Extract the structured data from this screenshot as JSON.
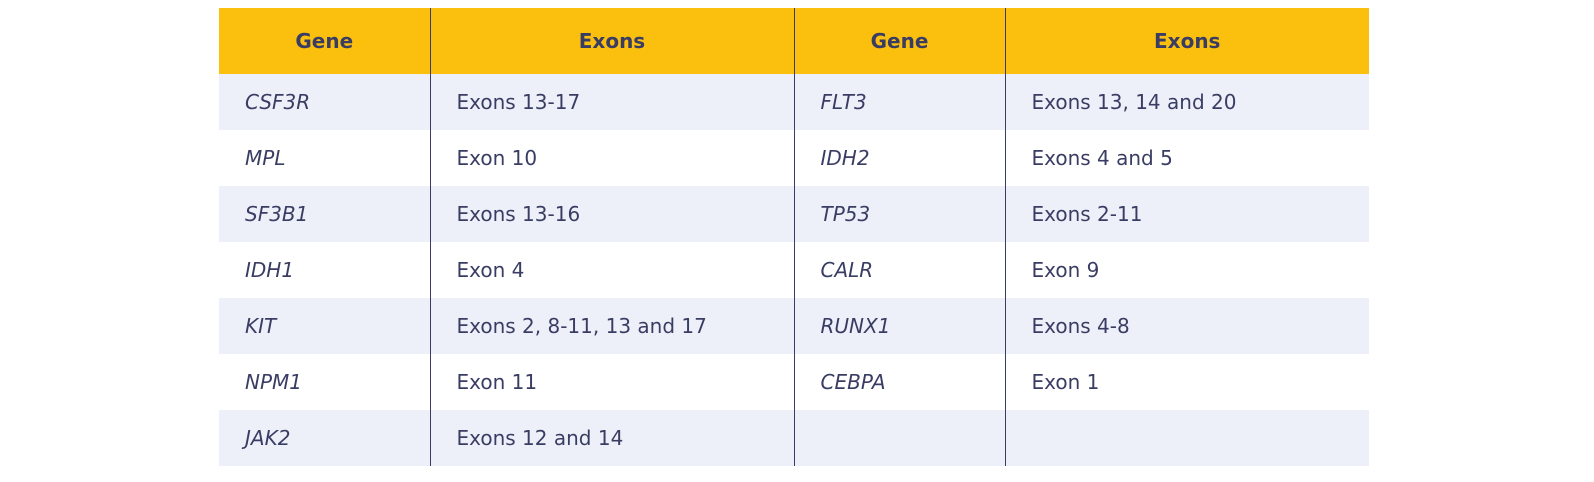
{
  "table": {
    "headers": [
      "Gene",
      "Exons",
      "Gene",
      "Exons"
    ],
    "rows": [
      {
        "gene1": "CSF3R",
        "exons1": "Exons 13-17",
        "gene2": "FLT3",
        "exons2": "Exons 13, 14 and 20"
      },
      {
        "gene1": "MPL",
        "exons1": "Exon 10",
        "gene2": "IDH2",
        "exons2": "Exons 4 and 5"
      },
      {
        "gene1": "SF3B1",
        "exons1": "Exons 13-16",
        "gene2": "TP53",
        "exons2": "Exons 2-11"
      },
      {
        "gene1": "IDH1",
        "exons1": "Exon 4",
        "gene2": "CALR",
        "exons2": "Exon 9"
      },
      {
        "gene1": "KIT",
        "exons1": "Exons 2, 8-11, 13 and 17",
        "gene2": "RUNX1",
        "exons2": "Exons 4-8"
      },
      {
        "gene1": "NPM1",
        "exons1": "Exon 11",
        "gene2": "CEBPA",
        "exons2": "Exon 1"
      },
      {
        "gene1": "JAK2",
        "exons1": "Exons 12 and 14",
        "gene2": "",
        "exons2": ""
      }
    ]
  },
  "colors": {
    "header_bg": "#fbc00e",
    "row_alt_bg": "#eef0f9",
    "text": "#3a3d63"
  }
}
